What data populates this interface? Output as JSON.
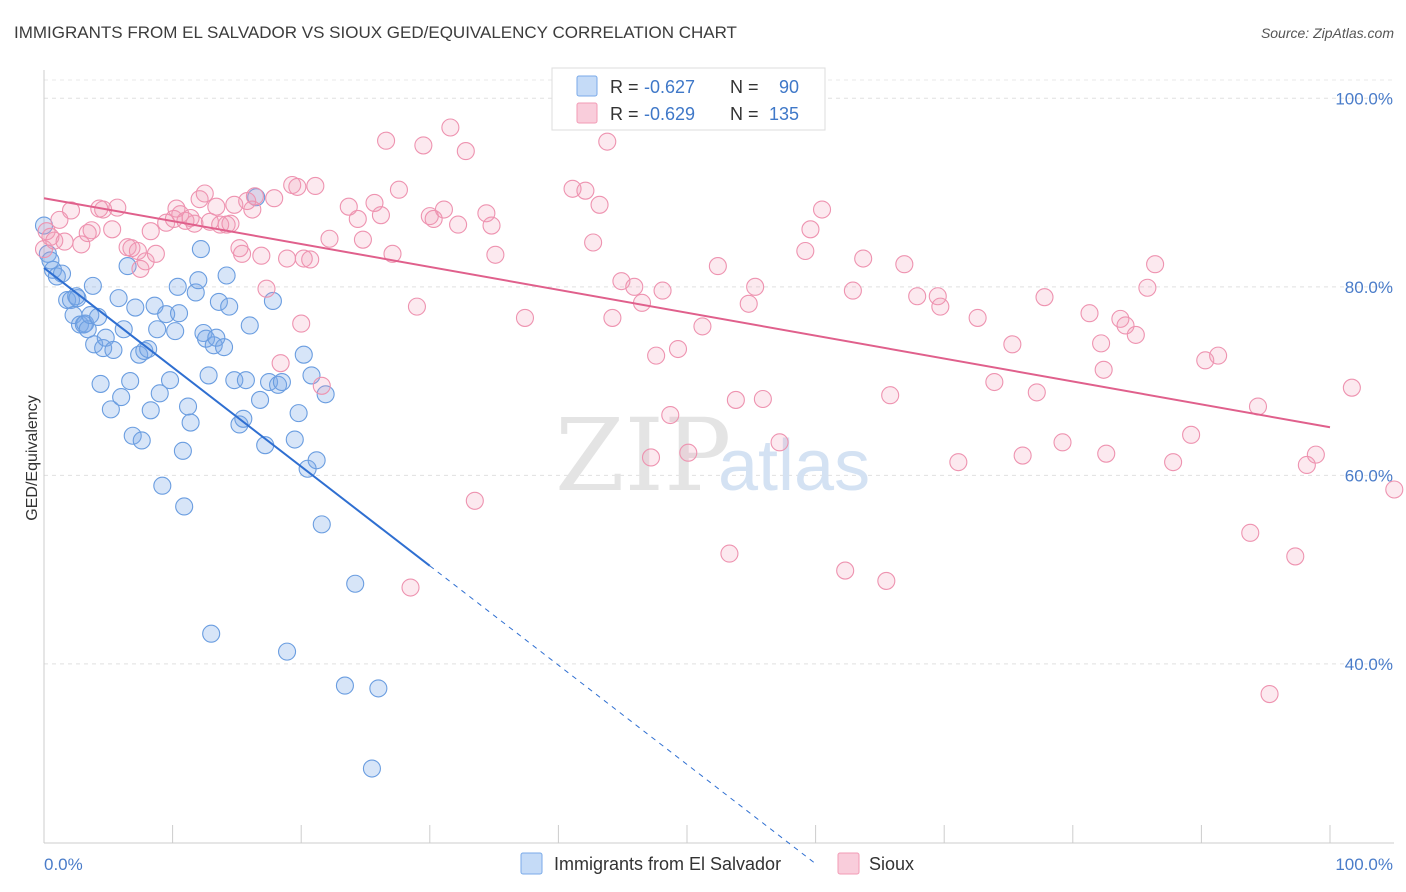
{
  "title": "IMMIGRANTS FROM EL SALVADOR VS SIOUX GED/EQUIVALENCY CORRELATION CHART",
  "source": "Source: ZipAtlas.com",
  "watermark": {
    "zip": "ZIP",
    "atlas": "atlas"
  },
  "legend": {
    "r_label": "R =",
    "n_label": "N =",
    "rows": [
      {
        "r": "-0.627",
        "n": "90"
      },
      {
        "r": "-0.629",
        "n": "135"
      }
    ]
  },
  "chart_data": {
    "type": "scatter",
    "title": "IMMIGRANTS FROM EL SALVADOR VS SIOUX GED/EQUIVALENCY CORRELATION CHART",
    "xlabel": "",
    "ylabel": "GED/Equivalency",
    "xlim": [
      0,
      100
    ],
    "ylim": [
      21,
      103
    ],
    "x_tick_labels": [
      "0.0%",
      "100.0%"
    ],
    "y_ticks": [
      40,
      60,
      80,
      100
    ],
    "y_tick_labels": [
      "40.0%",
      "60.0%",
      "80.0%",
      "100.0%"
    ],
    "grid": true,
    "legend_position": "top-center",
    "series": [
      {
        "name": "Immigrants from El Salvador",
        "color": "#7aaae8",
        "trend": {
          "x0": 0,
          "y0": 82.0,
          "x1": 30,
          "y1": 50.4,
          "dashed_to_x": 60
        },
        "points": [
          [
            0,
            86.5
          ],
          [
            0.3,
            83.5
          ],
          [
            0.5,
            82.8
          ],
          [
            0.7,
            81.8
          ],
          [
            1,
            81.1
          ],
          [
            1.4,
            81.4
          ],
          [
            1.8,
            78.6
          ],
          [
            2.1,
            78.6
          ],
          [
            2.3,
            77.0
          ],
          [
            2.5,
            79.0
          ],
          [
            2.6,
            78.8
          ],
          [
            2.8,
            76.0
          ],
          [
            3.1,
            76.0
          ],
          [
            3.2,
            76.1
          ],
          [
            3.4,
            75.5
          ],
          [
            3.6,
            77.0
          ],
          [
            3.8,
            80.1
          ],
          [
            3.9,
            73.9
          ],
          [
            4.2,
            76.8
          ],
          [
            4.4,
            69.7
          ],
          [
            4.6,
            73.5
          ],
          [
            4.8,
            74.6
          ],
          [
            5.2,
            67.0
          ],
          [
            5.4,
            73.3
          ],
          [
            5.8,
            78.8
          ],
          [
            6,
            68.3
          ],
          [
            6.2,
            75.5
          ],
          [
            6.5,
            82.2
          ],
          [
            6.7,
            70.0
          ],
          [
            6.9,
            64.2
          ],
          [
            7.1,
            77.8
          ],
          [
            7.4,
            72.8
          ],
          [
            7.6,
            63.7
          ],
          [
            7.8,
            73.2
          ],
          [
            8.1,
            73.4
          ],
          [
            8.3,
            66.9
          ],
          [
            8.6,
            78.0
          ],
          [
            8.8,
            75.5
          ],
          [
            9,
            68.7
          ],
          [
            9.2,
            58.9
          ],
          [
            9.5,
            77.1
          ],
          [
            9.8,
            70.1
          ],
          [
            10.2,
            75.3
          ],
          [
            10.4,
            80.0
          ],
          [
            10.5,
            77.2
          ],
          [
            10.8,
            62.6
          ],
          [
            10.9,
            56.7
          ],
          [
            11.2,
            67.3
          ],
          [
            11.4,
            65.6
          ],
          [
            11.8,
            79.4
          ],
          [
            12,
            80.7
          ],
          [
            12.2,
            84.0
          ],
          [
            12.4,
            75.1
          ],
          [
            12.6,
            74.5
          ],
          [
            12.8,
            70.6
          ],
          [
            13,
            43.2
          ],
          [
            13.2,
            73.8
          ],
          [
            13.4,
            74.6
          ],
          [
            13.6,
            78.4
          ],
          [
            14,
            73.6
          ],
          [
            14.2,
            81.2
          ],
          [
            14.4,
            77.9
          ],
          [
            14.8,
            70.1
          ],
          [
            15.2,
            65.4
          ],
          [
            15.5,
            66.0
          ],
          [
            15.7,
            70.1
          ],
          [
            16,
            75.9
          ],
          [
            16.5,
            89.5
          ],
          [
            16.8,
            68.0
          ],
          [
            17.2,
            63.2
          ],
          [
            17.5,
            69.9
          ],
          [
            17.8,
            78.5
          ],
          [
            18.2,
            69.6
          ],
          [
            18.5,
            69.9
          ],
          [
            18.9,
            41.3
          ],
          [
            19.5,
            63.8
          ],
          [
            19.8,
            66.6
          ],
          [
            20.2,
            72.8
          ],
          [
            20.5,
            60.7
          ],
          [
            20.8,
            70.6
          ],
          [
            21.2,
            61.6
          ],
          [
            21.6,
            54.8
          ],
          [
            21.9,
            68.6
          ],
          [
            23.4,
            37.7
          ],
          [
            24.2,
            48.5
          ],
          [
            25.5,
            28.9
          ],
          [
            26,
            37.4
          ]
        ]
      },
      {
        "name": "Sioux",
        "color": "#f29bb6",
        "trend": {
          "x0": 0,
          "y0": 89.4,
          "x1": 100,
          "y1": 65.1
        },
        "points": [
          [
            0,
            84.0
          ],
          [
            0.2,
            85.9
          ],
          [
            0.5,
            85.3
          ],
          [
            0.8,
            84.9
          ],
          [
            1.2,
            87.1
          ],
          [
            1.6,
            84.8
          ],
          [
            2.1,
            88.1
          ],
          [
            2.9,
            84.5
          ],
          [
            3.4,
            85.7
          ],
          [
            3.7,
            86.0
          ],
          [
            4.3,
            88.3
          ],
          [
            4.6,
            88.2
          ],
          [
            5.3,
            86.1
          ],
          [
            5.7,
            88.4
          ],
          [
            6.5,
            84.2
          ],
          [
            6.8,
            84.1
          ],
          [
            7.3,
            83.8
          ],
          [
            7.5,
            81.9
          ],
          [
            7.9,
            82.7
          ],
          [
            8.3,
            85.9
          ],
          [
            8.7,
            83.5
          ],
          [
            9.5,
            86.8
          ],
          [
            10.1,
            87.2
          ],
          [
            10.3,
            88.3
          ],
          [
            10.6,
            87.7
          ],
          [
            11,
            87.0
          ],
          [
            11.4,
            87.3
          ],
          [
            11.7,
            86.7
          ],
          [
            12.1,
            89.3
          ],
          [
            12.5,
            89.9
          ],
          [
            12.9,
            86.9
          ],
          [
            13.4,
            88.5
          ],
          [
            13.7,
            86.6
          ],
          [
            14.2,
            86.6
          ],
          [
            14.5,
            86.7
          ],
          [
            14.8,
            88.7
          ],
          [
            15.2,
            84.1
          ],
          [
            15.4,
            83.5
          ],
          [
            15.8,
            89.1
          ],
          [
            16.2,
            88.2
          ],
          [
            16.4,
            89.6
          ],
          [
            16.9,
            83.3
          ],
          [
            17.3,
            79.8
          ],
          [
            17.9,
            89.4
          ],
          [
            18.4,
            71.9
          ],
          [
            18.9,
            83.0
          ],
          [
            19.3,
            90.8
          ],
          [
            19.7,
            90.6
          ],
          [
            20,
            76.1
          ],
          [
            20.2,
            83.0
          ],
          [
            20.7,
            82.9
          ],
          [
            21.1,
            90.7
          ],
          [
            21.6,
            69.5
          ],
          [
            22.2,
            85.1
          ],
          [
            23.7,
            88.5
          ],
          [
            24.4,
            87.2
          ],
          [
            24.8,
            85.0
          ],
          [
            25.7,
            88.9
          ],
          [
            26.2,
            87.6
          ],
          [
            26.6,
            95.5
          ],
          [
            27.1,
            83.5
          ],
          [
            27.6,
            90.3
          ],
          [
            28.5,
            48.1
          ],
          [
            29,
            77.9
          ],
          [
            29.5,
            95.0
          ],
          [
            30,
            87.5
          ],
          [
            30.3,
            87.2
          ],
          [
            31.1,
            88.2
          ],
          [
            31.6,
            96.9
          ],
          [
            32.2,
            86.6
          ],
          [
            32.8,
            94.4
          ],
          [
            33.5,
            57.3
          ],
          [
            34.4,
            87.8
          ],
          [
            34.8,
            86.5
          ],
          [
            35.1,
            83.4
          ],
          [
            37.4,
            76.7
          ],
          [
            41.1,
            90.4
          ],
          [
            42.1,
            90.2
          ],
          [
            42.7,
            84.7
          ],
          [
            43.2,
            88.7
          ],
          [
            43.8,
            95.4
          ],
          [
            44.2,
            76.7
          ],
          [
            44.9,
            80.6
          ],
          [
            45.9,
            80.0
          ],
          [
            46.5,
            78.3
          ],
          [
            47.2,
            61.9
          ],
          [
            47.6,
            72.7
          ],
          [
            48.1,
            79.6
          ],
          [
            48.7,
            66.4
          ],
          [
            49.3,
            73.4
          ],
          [
            50.1,
            62.4
          ],
          [
            51.2,
            75.8
          ],
          [
            52.4,
            82.2
          ],
          [
            53.3,
            51.7
          ],
          [
            53.8,
            68.0
          ],
          [
            54.8,
            78.2
          ],
          [
            55.3,
            80.0
          ],
          [
            55.9,
            68.1
          ],
          [
            57.2,
            63.5
          ],
          [
            59.2,
            83.8
          ],
          [
            59.6,
            86.1
          ],
          [
            60.5,
            88.2
          ],
          [
            62.3,
            49.9
          ],
          [
            62.9,
            79.6
          ],
          [
            63.7,
            83.0
          ],
          [
            65.5,
            48.8
          ],
          [
            65.8,
            68.5
          ],
          [
            66.9,
            82.4
          ],
          [
            67.9,
            79.0
          ],
          [
            69.5,
            79.0
          ],
          [
            69.7,
            77.9
          ],
          [
            71.1,
            61.4
          ],
          [
            72.6,
            76.7
          ],
          [
            73.9,
            69.9
          ],
          [
            75.3,
            73.9
          ],
          [
            76.1,
            62.1
          ],
          [
            77.2,
            68.8
          ],
          [
            77.8,
            78.9
          ],
          [
            79.2,
            63.5
          ],
          [
            81.3,
            77.2
          ],
          [
            82.2,
            74.0
          ],
          [
            82.4,
            71.2
          ],
          [
            82.6,
            62.3
          ],
          [
            83.7,
            76.6
          ],
          [
            84.1,
            75.9
          ],
          [
            84.9,
            74.9
          ],
          [
            85.8,
            79.9
          ],
          [
            86.4,
            82.4
          ],
          [
            87.8,
            61.4
          ],
          [
            89.2,
            64.3
          ],
          [
            90.3,
            72.2
          ],
          [
            91.3,
            72.7
          ],
          [
            93.8,
            53.9
          ],
          [
            94.4,
            67.3
          ],
          [
            95.3,
            36.8
          ],
          [
            97.3,
            51.4
          ],
          [
            98.2,
            61.1
          ],
          [
            98.9,
            62.2
          ],
          [
            101.7,
            69.3
          ],
          [
            105.0,
            58.5
          ]
        ]
      }
    ]
  }
}
